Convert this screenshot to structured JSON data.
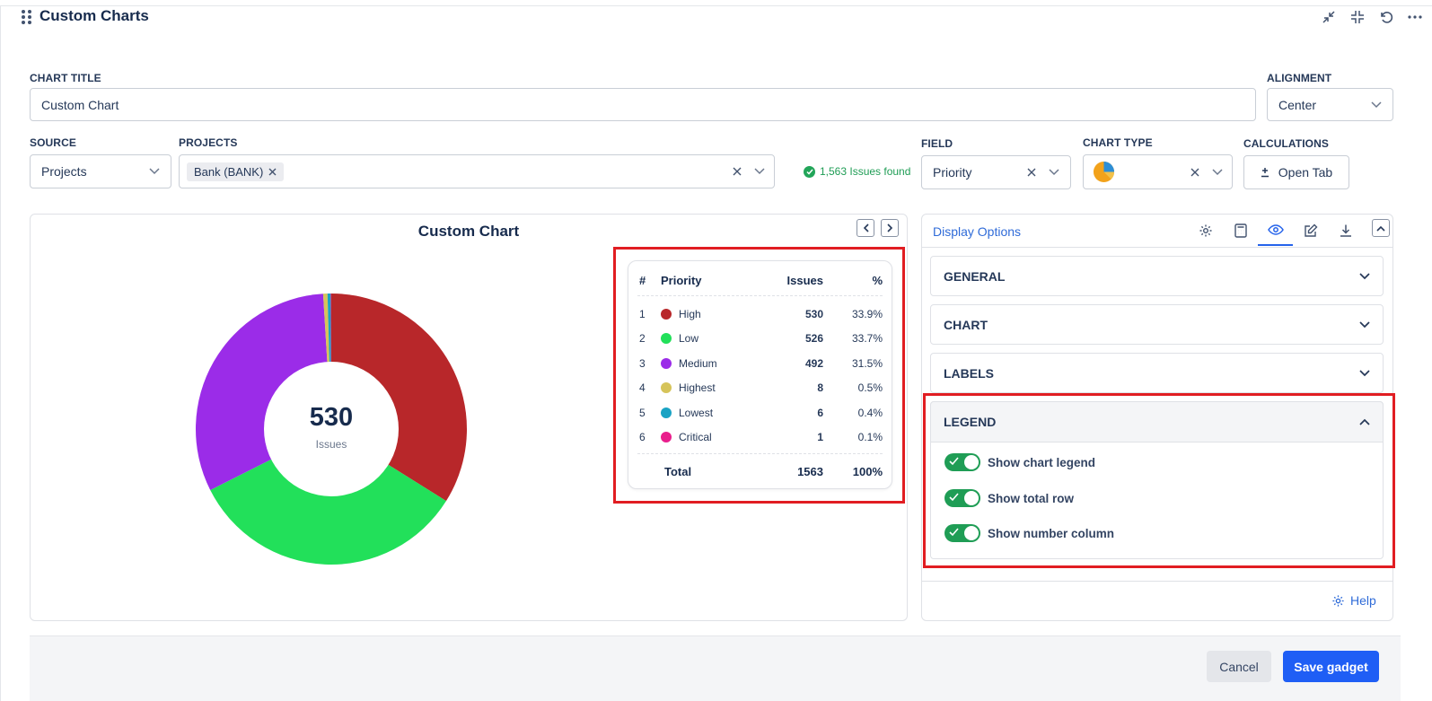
{
  "gadget": {
    "title": "Custom Charts"
  },
  "form": {
    "chart_title_label": "CHART TITLE",
    "chart_title_value": "Custom Chart",
    "alignment_label": "ALIGNMENT",
    "alignment_value": "Center",
    "source_label": "SOURCE",
    "source_value": "Projects",
    "projects_label": "PROJECTS",
    "project_tag": "Bank (BANK)",
    "issues_found": "1,563 Issues found",
    "field_label": "FIELD",
    "field_value": "Priority",
    "chart_type_label": "CHART TYPE",
    "calculations_label": "CALCULATIONS",
    "open_tab_label": "Open Tab"
  },
  "chart_data": {
    "type": "pie",
    "title": "Custom Chart",
    "center_value": "530",
    "center_label": "Issues",
    "categories": [
      "High",
      "Low",
      "Medium",
      "Highest",
      "Lowest",
      "Critical"
    ],
    "values": [
      530,
      526,
      492,
      8,
      6,
      1
    ],
    "colors": [
      "#b8272a",
      "#22e05a",
      "#9b2ce8",
      "#d6c45a",
      "#1aa3c4",
      "#e91e8c"
    ]
  },
  "legend": {
    "headers": {
      "num": "#",
      "name": "Priority",
      "issues": "Issues",
      "pct": "%"
    },
    "rows": [
      {
        "num": "1",
        "name": "High",
        "issues": "530",
        "pct": "33.9%",
        "color": "#b8272a"
      },
      {
        "num": "2",
        "name": "Low",
        "issues": "526",
        "pct": "33.7%",
        "color": "#22e05a"
      },
      {
        "num": "3",
        "name": "Medium",
        "issues": "492",
        "pct": "31.5%",
        "color": "#9b2ce8"
      },
      {
        "num": "4",
        "name": "Highest",
        "issues": "8",
        "pct": "0.5%",
        "color": "#d6c45a"
      },
      {
        "num": "5",
        "name": "Lowest",
        "issues": "6",
        "pct": "0.4%",
        "color": "#1aa3c4"
      },
      {
        "num": "6",
        "name": "Critical",
        "issues": "1",
        "pct": "0.1%",
        "color": "#e91e8c"
      }
    ],
    "total": {
      "label": "Total",
      "issues": "1563",
      "pct": "100%"
    }
  },
  "options": {
    "tab_label": "Display Options",
    "sections": {
      "general": "GENERAL",
      "chart": "CHART",
      "labels": "LABELS",
      "legend": "LEGEND"
    },
    "toggles": {
      "show_chart_legend": "Show chart legend",
      "show_total_row": "Show total row",
      "show_number_column": "Show number column"
    },
    "help_label": "Help"
  },
  "footer": {
    "cancel_label": "Cancel",
    "save_label": "Save gadget"
  }
}
